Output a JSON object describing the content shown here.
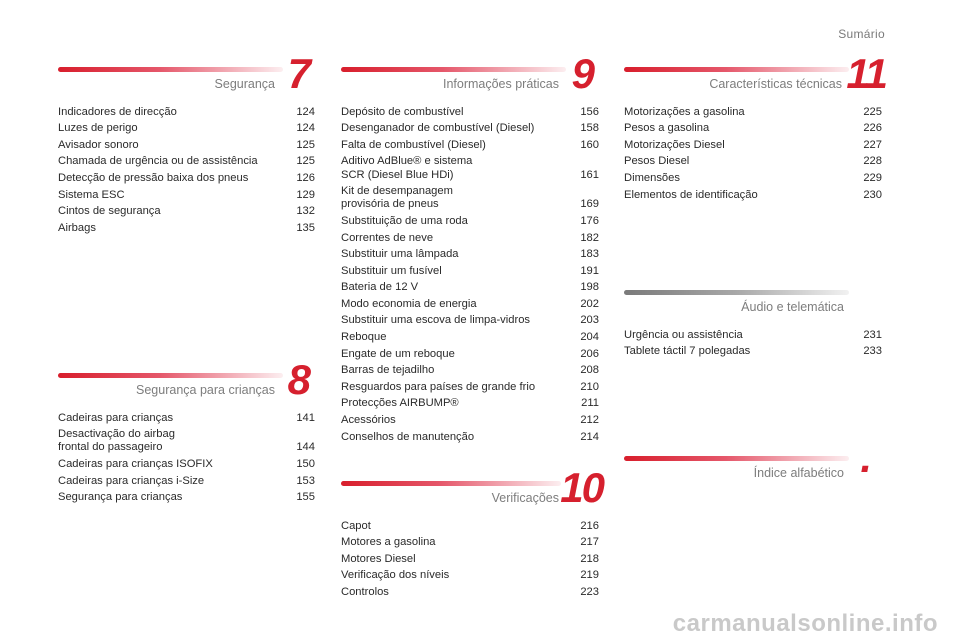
{
  "header": {
    "title": "Sumário"
  },
  "sections": {
    "s7": {
      "number": "7",
      "title": "Segurança",
      "items": [
        {
          "label": "Indicadores de direcção",
          "page": "124"
        },
        {
          "label": "Luzes de perigo",
          "page": "124"
        },
        {
          "label": "Avisador sonoro",
          "page": "125"
        },
        {
          "label": "Chamada de urgência ou de assistência",
          "page": "125"
        },
        {
          "label": "Detecção de pressão baixa dos pneus",
          "page": "126"
        },
        {
          "label": "Sistema ESC",
          "page": "129"
        },
        {
          "label": "Cintos de segurança",
          "page": "132"
        },
        {
          "label": "Airbags",
          "page": "135"
        }
      ]
    },
    "s8": {
      "number": "8",
      "title": "Segurança para crianças",
      "items": [
        {
          "label": "Cadeiras para crianças",
          "page": "141"
        },
        {
          "label": "Desactivação do airbag\nfrontal do passageiro",
          "page": "144"
        },
        {
          "label": "Cadeiras para crianças ISOFIX",
          "page": "150"
        },
        {
          "label": "Cadeiras para crianças i-Size",
          "page": "153"
        },
        {
          "label": "Segurança para crianças",
          "page": "155"
        }
      ]
    },
    "s9": {
      "number": "9",
      "title": "Informações práticas",
      "items": [
        {
          "label": "Depósito de combustível",
          "page": "156"
        },
        {
          "label": "Desenganador de combustível (Diesel)",
          "page": "158"
        },
        {
          "label": "Falta de combustível (Diesel)",
          "page": "160"
        },
        {
          "label": "Aditivo AdBlue® e sistema\nSCR (Diesel Blue HDi)",
          "page": "161"
        },
        {
          "label": "Kit de desempanagem\nprovisória de pneus",
          "page": "169"
        },
        {
          "label": "Substituição de uma roda",
          "page": "176"
        },
        {
          "label": "Correntes de neve",
          "page": "182"
        },
        {
          "label": "Substituir uma lâmpada",
          "page": "183"
        },
        {
          "label": "Substituir um fusível",
          "page": "191"
        },
        {
          "label": "Bateria de 12 V",
          "page": "198"
        },
        {
          "label": "Modo economia de energia",
          "page": "202"
        },
        {
          "label": "Substituir uma escova de limpa-vidros",
          "page": "203"
        },
        {
          "label": "Reboque",
          "page": "204"
        },
        {
          "label": "Engate de um reboque",
          "page": "206"
        },
        {
          "label": "Barras de tejadilho",
          "page": "208"
        },
        {
          "label": "Resguardos para países de grande frio",
          "page": "210"
        },
        {
          "label": "Protecções AIRBUMP®",
          "page": "211"
        },
        {
          "label": "Acessórios",
          "page": "212"
        },
        {
          "label": "Conselhos de manutenção",
          "page": "214"
        }
      ]
    },
    "s10": {
      "number": "10",
      "title": "Verificações",
      "items": [
        {
          "label": "Capot",
          "page": "216"
        },
        {
          "label": "Motores a gasolina",
          "page": "217"
        },
        {
          "label": "Motores Diesel",
          "page": "218"
        },
        {
          "label": "Verificação dos níveis",
          "page": "219"
        },
        {
          "label": "Controlos",
          "page": "223"
        }
      ]
    },
    "s11": {
      "number": "11",
      "title": "Características técnicas",
      "items": [
        {
          "label": "Motorizações a gasolina",
          "page": "225"
        },
        {
          "label": "Pesos a gasolina",
          "page": "226"
        },
        {
          "label": "Motorizações Diesel",
          "page": "227"
        },
        {
          "label": "Pesos Diesel",
          "page": "228"
        },
        {
          "label": "Dimensões",
          "page": "229"
        },
        {
          "label": "Elementos de identificação",
          "page": "230"
        }
      ]
    },
    "audio": {
      "title": "Áudio e telemática",
      "items": [
        {
          "label": "Urgência ou assistência",
          "page": "231"
        },
        {
          "label": "Tablete táctil 7 polegadas",
          "page": "233"
        }
      ]
    },
    "index": {
      "number": ".",
      "title": "Índice alfabético"
    }
  },
  "watermark": "carmanualsonline.info",
  "colors": {
    "accent": "#d6202e",
    "text": "#2a2a2a",
    "muted": "#7d7d7d"
  }
}
